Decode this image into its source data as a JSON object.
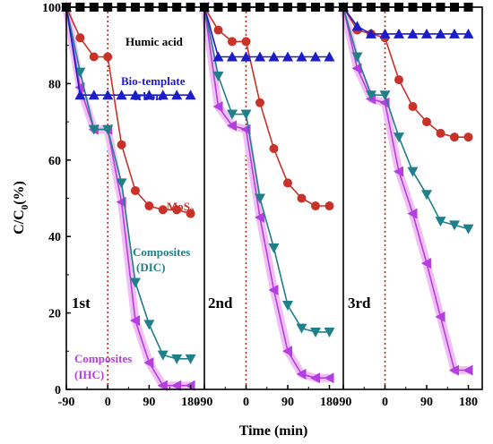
{
  "chart_data": {
    "type": "line",
    "xlabel": "Time (min)",
    "ylabel": "C/C0(%)",
    "ylabel_main": "C/C",
    "ylabel_sub": "0",
    "ylabel_tail": "(%)",
    "ylim": [
      0,
      100
    ],
    "yticks": [
      "0",
      "20",
      "40",
      "60",
      "80",
      "100"
    ],
    "xlim": [
      -90,
      210
    ],
    "xticks": [
      "-90",
      "0",
      "90",
      "180"
    ],
    "grid": false,
    "dark_reference_line_x": 0,
    "panels": [
      {
        "label": "1st"
      },
      {
        "label": "2nd"
      },
      {
        "label": "3rd"
      }
    ],
    "x": [
      -90,
      -60,
      -30,
      0,
      30,
      60,
      90,
      120,
      150,
      180
    ],
    "series": [
      {
        "name": "Humic acid",
        "color": "#000000",
        "marker": "square",
        "values": [
          [
            100,
            100,
            100,
            100,
            100,
            100,
            100,
            100,
            100,
            100
          ],
          [
            100,
            100,
            100,
            100,
            100,
            100,
            100,
            100,
            100,
            100
          ],
          [
            100,
            100,
            100,
            100,
            100,
            100,
            100,
            100,
            100,
            100
          ]
        ]
      },
      {
        "name": "Bio-template crbon",
        "label_line1": "Bio-template",
        "label_line2": "crbon",
        "color": "#1c1cc8",
        "marker": "triangle-up",
        "values": [
          [
            100,
            77,
            77,
            77,
            77,
            77,
            77,
            77,
            77,
            77
          ],
          [
            100,
            87,
            87,
            87,
            87,
            87,
            87,
            87,
            87,
            87
          ],
          [
            100,
            95,
            93,
            93,
            93,
            93,
            93,
            93,
            93,
            93
          ]
        ]
      },
      {
        "name": "MoS2",
        "label_main": "MoS",
        "label_sub": "2",
        "color": "#c83228",
        "marker": "circle",
        "values": [
          [
            100,
            92,
            87,
            87,
            64,
            52,
            48,
            47,
            47,
            46
          ],
          [
            100,
            94,
            91,
            91,
            75,
            63,
            54,
            50,
            48,
            48
          ],
          [
            100,
            94,
            93,
            92,
            81,
            74,
            70,
            67,
            66,
            66
          ]
        ]
      },
      {
        "name": "Composites (DIC)",
        "label_line1": "Composites",
        "label_line2": "(DIC)",
        "color": "#20808a",
        "marker": "triangle-down",
        "values": [
          [
            100,
            83,
            68,
            68,
            54,
            28,
            17,
            9,
            8,
            8
          ],
          [
            100,
            82,
            72,
            72,
            50,
            37,
            22,
            16,
            15,
            15
          ],
          [
            100,
            87,
            77,
            77,
            66,
            57,
            51,
            44,
            43,
            42
          ]
        ]
      },
      {
        "name": "Composites (IHC)",
        "label_line1": "Composites",
        "label_line2": "(IHC)",
        "color": "#b43ee0",
        "marker": "triangle-left",
        "values": [
          [
            100,
            79,
            68,
            68,
            49,
            18,
            7,
            1,
            1,
            1
          ],
          [
            100,
            74,
            69,
            68,
            45,
            26,
            10,
            4,
            3,
            3
          ],
          [
            100,
            84,
            76,
            75,
            57,
            46,
            33,
            19,
            5,
            5
          ]
        ]
      }
    ]
  }
}
